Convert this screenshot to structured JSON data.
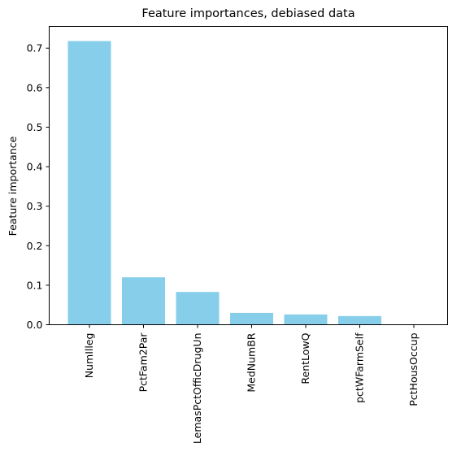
{
  "chart_data": {
    "type": "bar",
    "title": "Feature importances, debiased data",
    "xlabel": "",
    "ylabel": "Feature importance",
    "categories": [
      "NumIlleg",
      "PctFam2Par",
      "LemasPctOfficDrugUn",
      "MedNumBR",
      "RentLowQ",
      "pctWFarmSelf",
      "PctHousOccup"
    ],
    "values": [
      0.718,
      0.12,
      0.083,
      0.03,
      0.026,
      0.022,
      0.0
    ],
    "ylim": [
      0,
      0.755
    ],
    "yticks": [
      0.0,
      0.1,
      0.2,
      0.3,
      0.4,
      0.5,
      0.6,
      0.7
    ],
    "ytick_labels": [
      "0.0",
      "0.1",
      "0.2",
      "0.3",
      "0.4",
      "0.5",
      "0.6",
      "0.7"
    ],
    "bar_color": "#87ceeb",
    "grid": false,
    "legend": "none"
  }
}
